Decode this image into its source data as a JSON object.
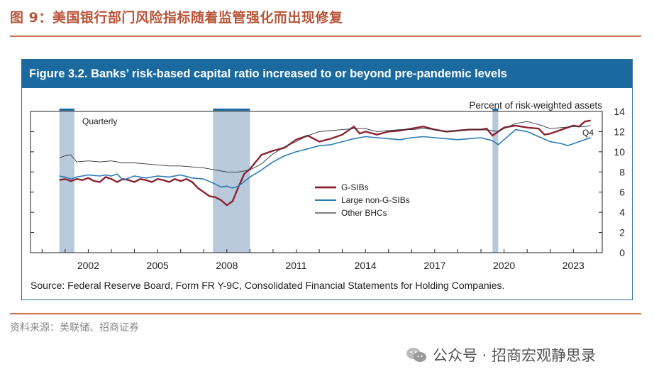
{
  "page": {
    "figure_title": "图 9：美国银行部门风险指标随着监管强化而出现修复",
    "figure_source": "资料来源：美联储、招商证券",
    "watermark": "公众号 · 招商宏观静思录"
  },
  "colors": {
    "accent": "#b8553a",
    "banner": "#1a6aa0",
    "recession_shade": "#b9c9dc",
    "recession_bar": "#1a6aa0",
    "gsibs": "#8b2332",
    "large_non_gsibs": "#2b7bb5",
    "other_bhcs": "#333333"
  },
  "chart_data": {
    "type": "line",
    "title": "Figure 3.2. Banks’ risk-based capital ratio increased to or beyond pre-pandemic levels",
    "ylabel": "Percent of risk-weighted assets",
    "frequency_label": "Quarterly",
    "end_label": "Q4",
    "source": "Source: Federal Reserve Board, Form FR Y-9C, Consolidated Financial Statements for Holding Companies.",
    "xlim": [
      2000,
      2024.75
    ],
    "ylim": [
      0,
      14
    ],
    "x_ticks": [
      2002,
      2005,
      2008,
      2011,
      2014,
      2017,
      2020,
      2023
    ],
    "y_ticks": [
      0,
      2,
      4,
      6,
      8,
      10,
      12,
      14
    ],
    "recessions": [
      [
        2001.25,
        2001.9
      ],
      [
        2007.9,
        2009.5
      ],
      [
        2020.0,
        2020.25
      ]
    ],
    "series": [
      {
        "name": "G-SIBs",
        "x": [
          2001.25,
          2001.5,
          2001.75,
          2002,
          2002.25,
          2002.5,
          2002.75,
          2003,
          2003.25,
          2003.5,
          2003.75,
          2004,
          2004.25,
          2004.5,
          2004.75,
          2005,
          2005.25,
          2005.5,
          2005.75,
          2006,
          2006.25,
          2006.5,
          2006.75,
          2007,
          2007.25,
          2007.5,
          2007.75,
          2008,
          2008.25,
          2008.5,
          2008.75,
          2009,
          2009.25,
          2009.5,
          2009.75,
          2010,
          2010.5,
          2011,
          2011.5,
          2012,
          2012.5,
          2013,
          2013.5,
          2014,
          2014.25,
          2014.5,
          2015,
          2015.5,
          2016,
          2016.5,
          2017,
          2017.5,
          2018,
          2018.5,
          2019,
          2019.5,
          2019.75,
          2020,
          2020.25,
          2020.5,
          2021,
          2021.5,
          2022,
          2022.25,
          2022.5,
          2023,
          2023.5,
          2023.75,
          2024,
          2024.25
        ],
        "values": [
          7.2,
          7.3,
          7.1,
          7.3,
          7.2,
          7.4,
          7.1,
          7.0,
          7.5,
          7.3,
          7.0,
          7.3,
          7.2,
          7.0,
          7.3,
          7.2,
          7.0,
          7.3,
          7.2,
          7.0,
          7.3,
          7.1,
          7.3,
          7.0,
          6.4,
          6.0,
          5.6,
          5.5,
          5.2,
          4.7,
          5.1,
          6.5,
          7.8,
          8.3,
          9.0,
          9.7,
          10.1,
          10.4,
          11.2,
          11.6,
          11.0,
          11.3,
          11.7,
          12.5,
          11.8,
          12.0,
          11.7,
          12.0,
          12.1,
          12.3,
          12.5,
          12.2,
          12.0,
          12.1,
          12.2,
          12.2,
          12.3,
          11.6,
          12.0,
          12.4,
          12.6,
          12.4,
          12.3,
          11.7,
          11.8,
          12.2,
          12.6,
          12.5,
          13.0,
          13.1
        ]
      },
      {
        "name": "Large non-G-SIBs",
        "x": [
          2001.25,
          2001.5,
          2001.75,
          2002,
          2002.5,
          2003,
          2003.25,
          2003.5,
          2003.75,
          2004,
          2004.5,
          2005,
          2005.5,
          2006,
          2006.5,
          2007,
          2007.5,
          2008,
          2008.25,
          2008.5,
          2008.75,
          2009,
          2009.5,
          2010,
          2010.5,
          2011,
          2011.5,
          2012,
          2012.5,
          2013,
          2013.5,
          2014,
          2014.5,
          2015,
          2015.5,
          2016,
          2016.5,
          2017,
          2017.5,
          2018,
          2018.5,
          2019,
          2019.5,
          2020,
          2020.25,
          2020.5,
          2021,
          2021.5,
          2022,
          2022.5,
          2023,
          2023.25,
          2023.5,
          2024,
          2024.25
        ],
        "values": [
          7.6,
          7.5,
          7.3,
          7.5,
          7.7,
          7.6,
          7.7,
          7.6,
          7.8,
          7.2,
          7.6,
          7.4,
          7.6,
          7.5,
          7.7,
          7.4,
          7.3,
          6.8,
          6.5,
          6.6,
          6.4,
          6.6,
          7.5,
          8.2,
          9.0,
          9.6,
          10.0,
          10.3,
          10.6,
          10.7,
          11.0,
          11.3,
          11.5,
          11.4,
          11.3,
          11.2,
          11.4,
          11.5,
          11.4,
          11.3,
          11.2,
          11.3,
          11.4,
          11.1,
          10.7,
          11.2,
          12.2,
          12.0,
          11.5,
          11.0,
          10.8,
          10.6,
          10.8,
          11.2,
          11.4
        ]
      },
      {
        "name": "Other BHCs",
        "x": [
          2001.25,
          2001.5,
          2001.75,
          2002,
          2002.5,
          2003,
          2003.5,
          2004,
          2004.5,
          2005,
          2005.5,
          2006,
          2006.5,
          2007,
          2007.5,
          2008,
          2008.5,
          2009,
          2009.5,
          2010,
          2010.5,
          2011,
          2011.5,
          2012,
          2012.5,
          2013,
          2013.5,
          2014,
          2014.5,
          2015,
          2015.5,
          2016,
          2016.5,
          2017,
          2017.5,
          2018,
          2018.5,
          2019,
          2019.5,
          2020,
          2020.25,
          2020.5,
          2021,
          2021.5,
          2022,
          2022.5,
          2023,
          2023.5,
          2024,
          2024.25
        ],
        "values": [
          9.4,
          9.6,
          9.7,
          9.0,
          9.1,
          9.0,
          9.1,
          8.9,
          8.9,
          8.8,
          8.7,
          8.6,
          8.6,
          8.5,
          8.4,
          8.2,
          8.0,
          8.0,
          8.2,
          8.8,
          9.8,
          10.5,
          11.0,
          11.6,
          12.0,
          12.1,
          12.2,
          12.3,
          12.3,
          12.0,
          12.1,
          12.2,
          12.2,
          12.3,
          12.2,
          12.0,
          12.1,
          12.2,
          12.2,
          12.1,
          12.0,
          12.3,
          12.8,
          13.0,
          12.7,
          12.3,
          12.4,
          12.5,
          12.5,
          12.6
        ]
      }
    ]
  }
}
